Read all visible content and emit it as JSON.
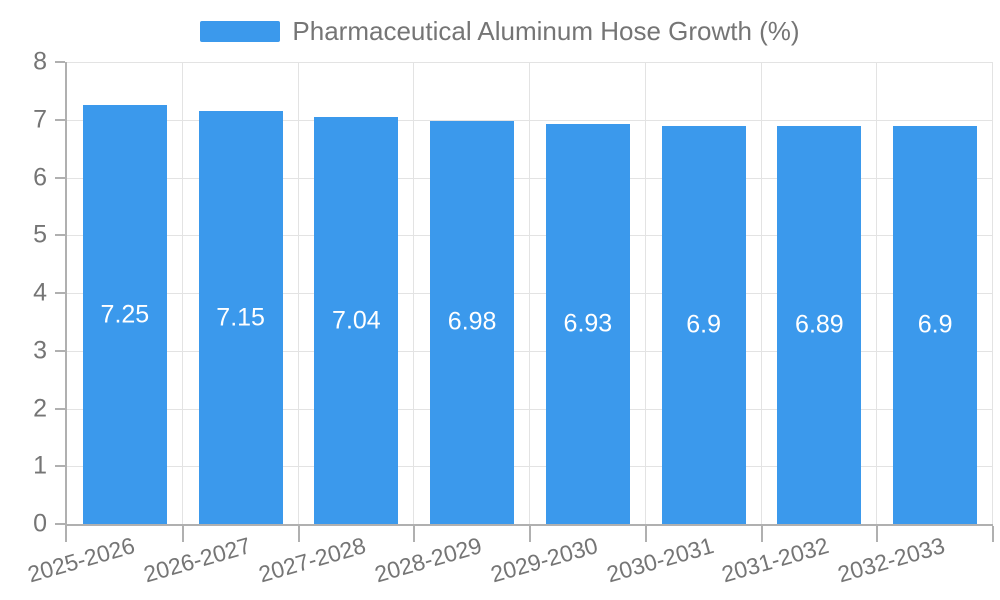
{
  "legend": {
    "label": "Pharmaceutical Aluminum Hose Growth (%)"
  },
  "colors": {
    "bar": "#3B99EC",
    "grid": "#E3E3E3",
    "axis": "#B0B0B0",
    "text": "#757575",
    "bar_label": "#FFFFFF",
    "background": "#FFFFFF"
  },
  "chart_data": {
    "type": "bar",
    "title": "Pharmaceutical Aluminum Hose Growth (%)",
    "categories": [
      "2025-2026",
      "2026-2027",
      "2027-2028",
      "2028-2029",
      "2029-2030",
      "2030-2031",
      "2031-2032",
      "2032-2033"
    ],
    "values": [
      7.25,
      7.15,
      7.04,
      6.98,
      6.93,
      6.9,
      6.89,
      6.9
    ],
    "value_labels": [
      "7.25",
      "7.15",
      "7.04",
      "6.98",
      "6.93",
      "6.9",
      "6.89",
      "6.9"
    ],
    "xlabel": "",
    "ylabel": "",
    "ylim": [
      0,
      8
    ],
    "yticks": [
      0,
      1,
      2,
      3,
      4,
      5,
      6,
      7,
      8
    ],
    "grid": true,
    "legend_position": "top",
    "bar_label_position": "center",
    "x_tick_label_rotation_deg": -16
  }
}
